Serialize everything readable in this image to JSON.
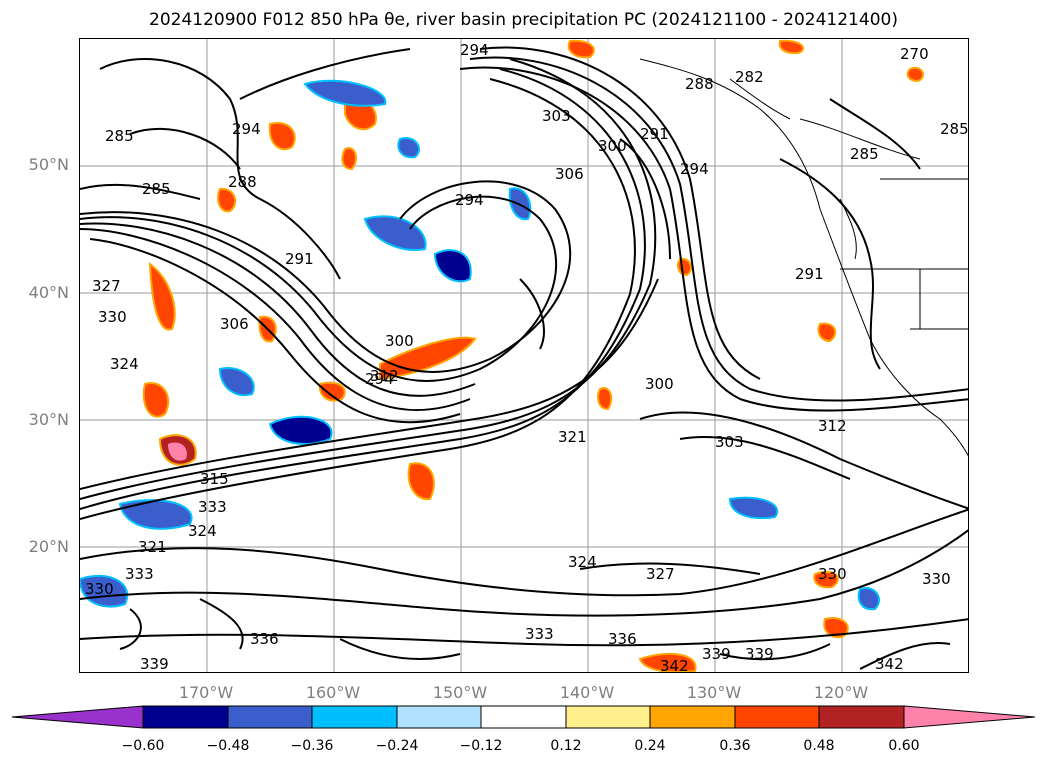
{
  "title": "2024120900 F012 850 hPa θe, river basin precipitation PC (2024121100 - 2024121400)",
  "map": {
    "lat_labels": [
      "50°N",
      "40°N",
      "30°N",
      "20°N"
    ],
    "lon_labels": [
      "170°W",
      "160°W",
      "150°W",
      "140°W",
      "130°W",
      "120°W"
    ],
    "contour_labels": [
      "294",
      "285",
      "285",
      "288",
      "294",
      "294",
      "291",
      "327",
      "330",
      "324",
      "306",
      "300",
      "294",
      "303",
      "306",
      "300",
      "291",
      "294",
      "288",
      "282",
      "285",
      "270",
      "285",
      "291",
      "300",
      "312",
      "321",
      "303",
      "312",
      "315",
      "333",
      "324",
      "321",
      "333",
      "330",
      "324",
      "327",
      "333",
      "336",
      "339",
      "336",
      "342",
      "339",
      "339",
      "342",
      "330",
      "330"
    ]
  },
  "colorbar": {
    "ticks": [
      "−0.60",
      "−0.48",
      "−0.36",
      "−0.24",
      "−0.12",
      "0.12",
      "0.24",
      "0.36",
      "0.48",
      "0.60"
    ],
    "colors": [
      "#9932cc",
      "#000090",
      "#3a5fcd",
      "#00bfff",
      "#b0e2ff",
      "#ffffff",
      "#fff08c",
      "#ffa500",
      "#ff4500",
      "#b22222",
      "#ff82ab"
    ]
  }
}
